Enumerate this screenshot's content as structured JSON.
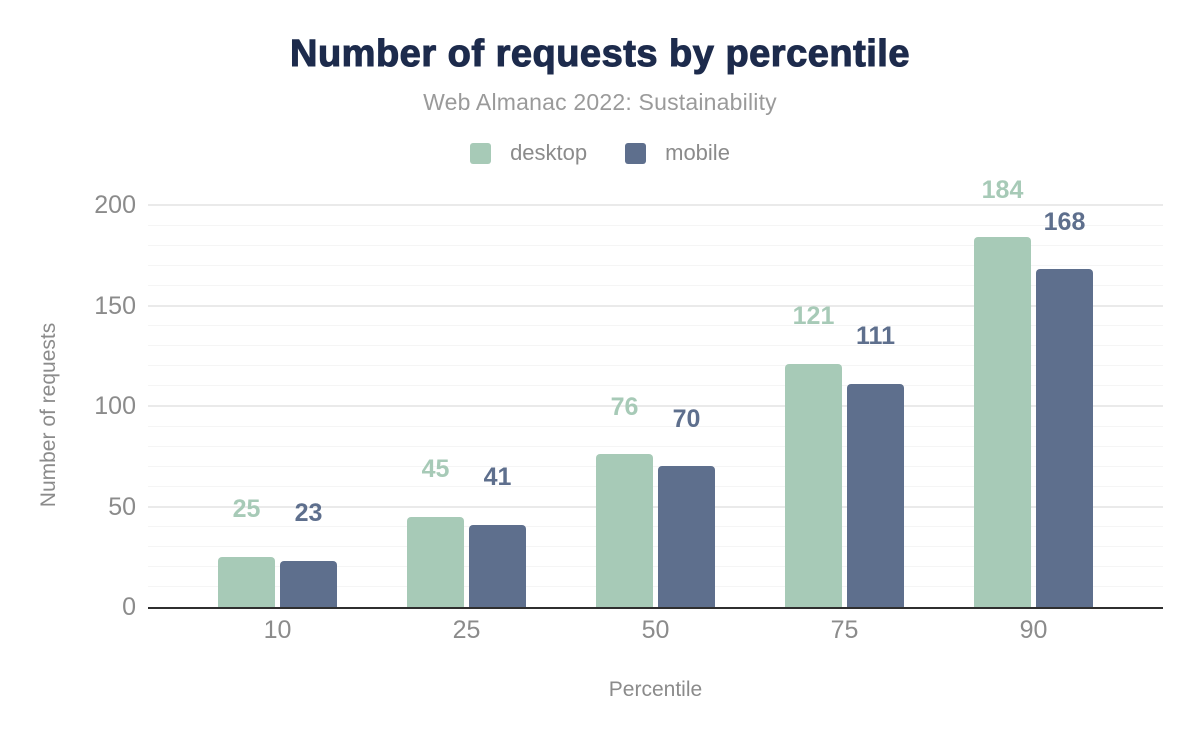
{
  "chart_data": {
    "type": "bar",
    "title": "Number of requests by percentile",
    "subtitle": "Web Almanac 2022: Sustainability",
    "xlabel": "Percentile",
    "ylabel": "Number of requests",
    "categories": [
      "10",
      "25",
      "50",
      "75",
      "90"
    ],
    "series": [
      {
        "name": "desktop",
        "color": "#a7cab7",
        "values": [
          25,
          45,
          76,
          121,
          184
        ]
      },
      {
        "name": "mobile",
        "color": "#5e6f8d",
        "values": [
          23,
          41,
          70,
          111,
          168
        ]
      }
    ],
    "ylim": [
      0,
      200
    ],
    "yticks": [
      0,
      50,
      100,
      150,
      200
    ],
    "grid": {
      "minor_step": 10,
      "major_step": 50,
      "minor_color": "#f5f5f5",
      "major_color": "#eaeaea"
    },
    "legend_position": "top",
    "data_labels": true
  },
  "colors": {
    "title": "#1d2b4c",
    "subtitle": "#9a9a9a",
    "axis_text": "#8b8b8b",
    "axis_line": "#2f2f2f",
    "background": "#ffffff",
    "desktop": "#a7cab7",
    "mobile": "#5e6f8d"
  }
}
